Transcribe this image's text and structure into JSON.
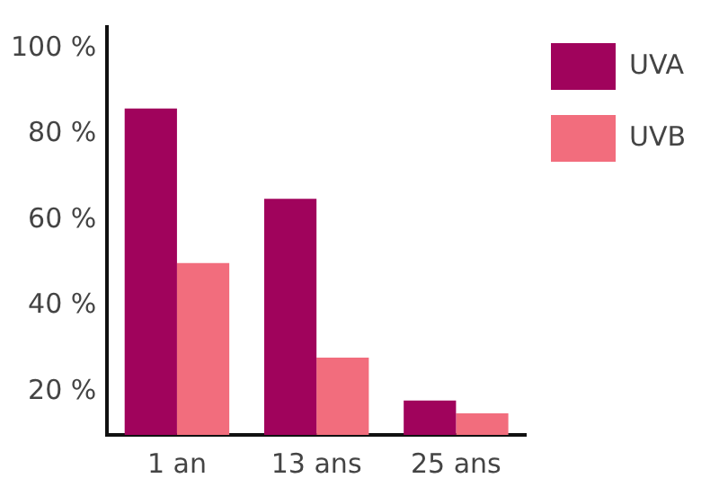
{
  "chart_data": {
    "type": "bar",
    "categories": [
      "1 an",
      "13 ans",
      "25 ans"
    ],
    "series": [
      {
        "name": "UVA",
        "color": "#a0035c",
        "values": [
          86,
          65,
          18
        ]
      },
      {
        "name": "UVB",
        "color": "#f26d7d",
        "values": [
          50,
          28,
          15
        ]
      }
    ],
    "ylim": [
      10,
      105
    ],
    "yticks": [
      {
        "value": 20,
        "label": "20 %"
      },
      {
        "value": 40,
        "label": "40 %"
      },
      {
        "value": 60,
        "label": "60 %"
      },
      {
        "value": 80,
        "label": "80 %"
      },
      {
        "value": 100,
        "label": "100 %"
      }
    ],
    "grid": false,
    "legend": "top right"
  }
}
